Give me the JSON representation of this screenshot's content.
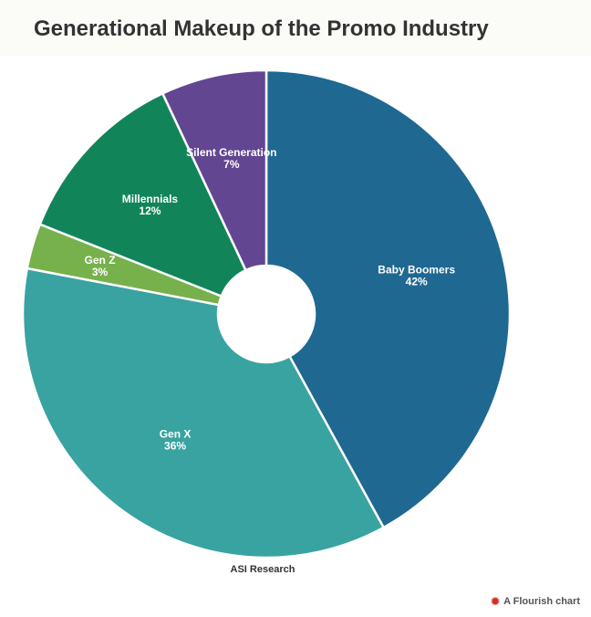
{
  "title": "Generational Makeup of the Promo Industry",
  "source": "ASI Research",
  "credit": {
    "icon": "flourish-logo-icon",
    "icon_glyph": "✹",
    "label": "A Flourish chart"
  },
  "chart_data": {
    "type": "pie",
    "title": "Generational Makeup of the Promo Industry",
    "donut": true,
    "slices": [
      {
        "name": "Baby Boomers",
        "value": 42,
        "label": "42%",
        "color": "#1f6891"
      },
      {
        "name": "Gen X",
        "value": 36,
        "label": "36%",
        "color": "#39a3a1"
      },
      {
        "name": "Gen Z",
        "value": 3,
        "label": "3%",
        "color": "#76b14c"
      },
      {
        "name": "Millennials",
        "value": 12,
        "label": "12%",
        "color": "#12845a"
      },
      {
        "name": "Silent Generation",
        "value": 7,
        "label": "7%",
        "color": "#634691"
      }
    ]
  }
}
